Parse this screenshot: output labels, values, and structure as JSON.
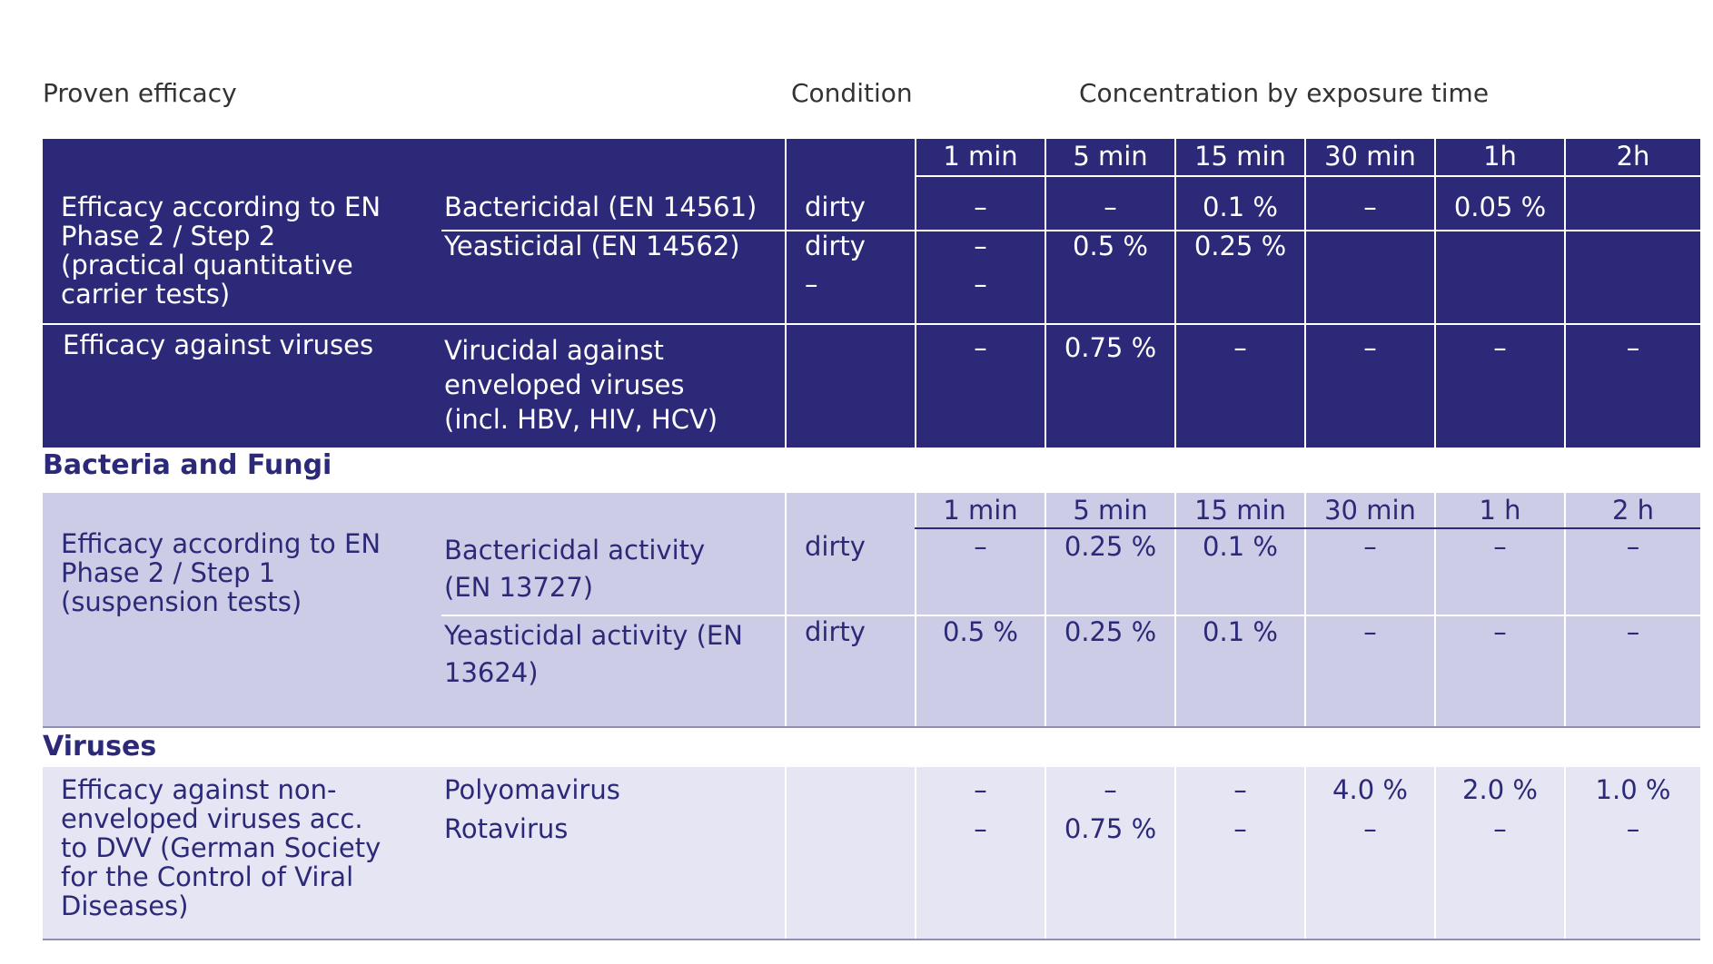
{
  "header": {
    "proven_efficacy": "Proven efficacy",
    "condition": "Condition",
    "concentration": "Concentration by exposure time"
  },
  "block1": {
    "times": [
      "1 min",
      "5 min",
      "15 min",
      "30 min",
      "1h",
      "2h"
    ],
    "group1_label": "Efficacy according to EN Phase 2 / Step 2 (practical quantitative carrier tests)",
    "rows": [
      {
        "name": "Bactericidal (EN 14561)",
        "condition": "dirty",
        "values": [
          "–",
          "–",
          "0.1 %",
          "–",
          "0.05 %",
          ""
        ]
      },
      {
        "name": "Yeasticidal (EN 14562)",
        "condition": "dirty",
        "values": [
          "–",
          "0.5 %",
          "0.25 %",
          "",
          "",
          ""
        ]
      }
    ],
    "extra_dash_condition": "–",
    "extra_dash_1min": "–",
    "group2_label": "Efficacy against viruses",
    "virus_row": {
      "name": "Virucidal against enveloped viruses (incl. HBV, HIV, HCV)",
      "condition": "",
      "values": [
        "–",
        "0.75 %",
        "–",
        "–",
        "–",
        "–"
      ]
    }
  },
  "section_bacteria": "Bacteria and Fungi",
  "block2": {
    "times": [
      "1 min",
      "5 min",
      "15 min",
      "30 min",
      "1 h",
      "2 h"
    ],
    "group_label": "Efficacy according to EN Phase 2 / Step 1 (suspension tests)",
    "rows": [
      {
        "name": "Bactericidal activity (EN 13727)",
        "condition": "dirty",
        "values": [
          "–",
          "0.25 %",
          "0.1 %",
          "–",
          "–",
          "–"
        ]
      },
      {
        "name": "Yeasticidal activity (EN 13624)",
        "condition": "dirty",
        "values": [
          "0.5 %",
          "0.25 %",
          "0.1 %",
          "–",
          "–",
          "–"
        ]
      }
    ]
  },
  "section_viruses": "Viruses",
  "block3": {
    "group_label": "Efficacy against non-enveloped viruses acc. to DVV (German Society for the Control of Viral Diseases)",
    "rows": [
      {
        "name": "Polyomavirus",
        "values": [
          "–",
          "–",
          "–",
          "4.0 %",
          "2.0 %",
          "1.0 %"
        ]
      },
      {
        "name": "Rotavirus",
        "values": [
          "–",
          "0.75 %",
          "–",
          "–",
          "–",
          "–"
        ]
      }
    ]
  }
}
